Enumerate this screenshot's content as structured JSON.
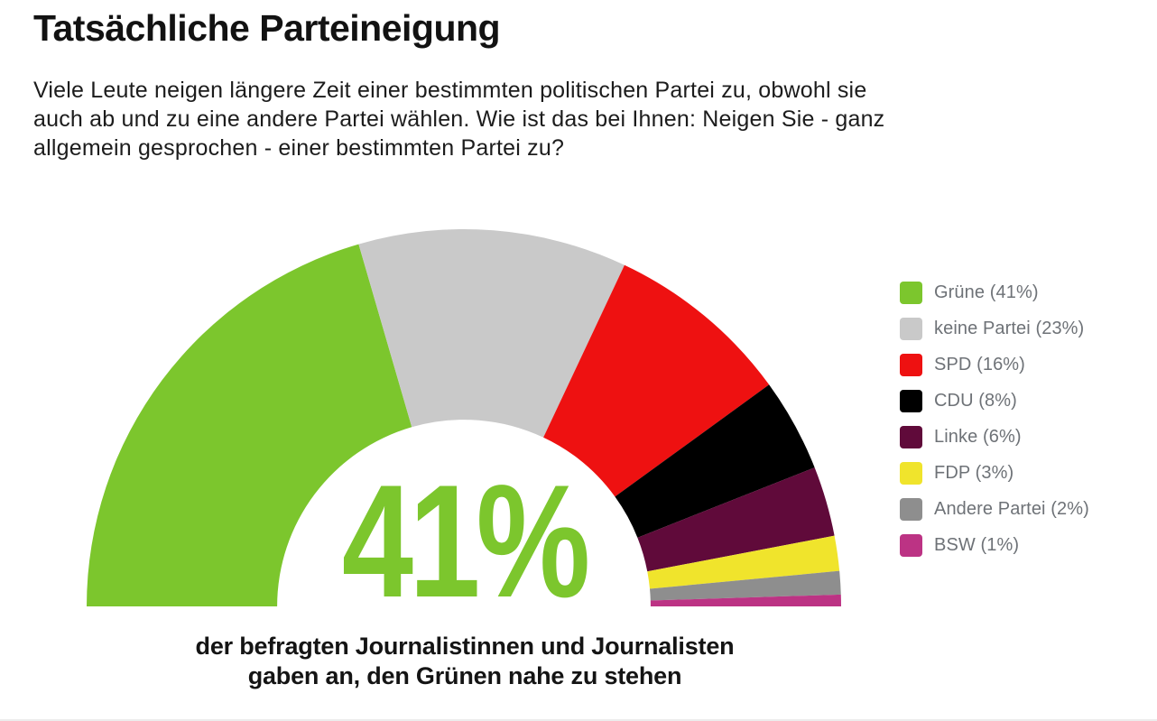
{
  "header": {
    "title": "Tatsächliche Parteineigung",
    "intro_lines": [
      "Viele Leute neigen längere Zeit einer bestimmten politischen Partei zu, obwohl sie",
      "auch ab und zu eine andere Partei wählen. Wie ist das bei Ihnen: Neigen Sie - ganz",
      "allgemein gesprochen - einer bestimmten Partei zu?"
    ]
  },
  "chart_data": {
    "type": "pie",
    "subtype": "half-donut-gauge",
    "title": "Tatsächliche Parteineigung",
    "unit": "%",
    "total_angle_deg": 180,
    "inner_radius_ratio": 0.495,
    "legend_position": "right",
    "series": [
      {
        "label": "Grüne",
        "value": 41,
        "color": "#7cc62d"
      },
      {
        "label": "keine Partei",
        "value": 23,
        "color": "#c9c9c9"
      },
      {
        "label": "SPD",
        "value": 16,
        "color": "#ee1111"
      },
      {
        "label": "CDU",
        "value": 8,
        "color": "#000000"
      },
      {
        "label": "Linke",
        "value": 6,
        "color": "#600a3a"
      },
      {
        "label": "FDP",
        "value": 3,
        "color": "#f0e42c"
      },
      {
        "label": "Andere Partei",
        "value": 2,
        "color": "#8e8e8e"
      },
      {
        "label": "BSW",
        "value": 1,
        "color": "#bc3384"
      }
    ],
    "center_label": "41%",
    "center_label_color": "#7cc62d",
    "caption_lines": [
      "der befragten Journalistinnen und Journalisten",
      "gaben an, den Grünen nahe zu stehen"
    ]
  }
}
